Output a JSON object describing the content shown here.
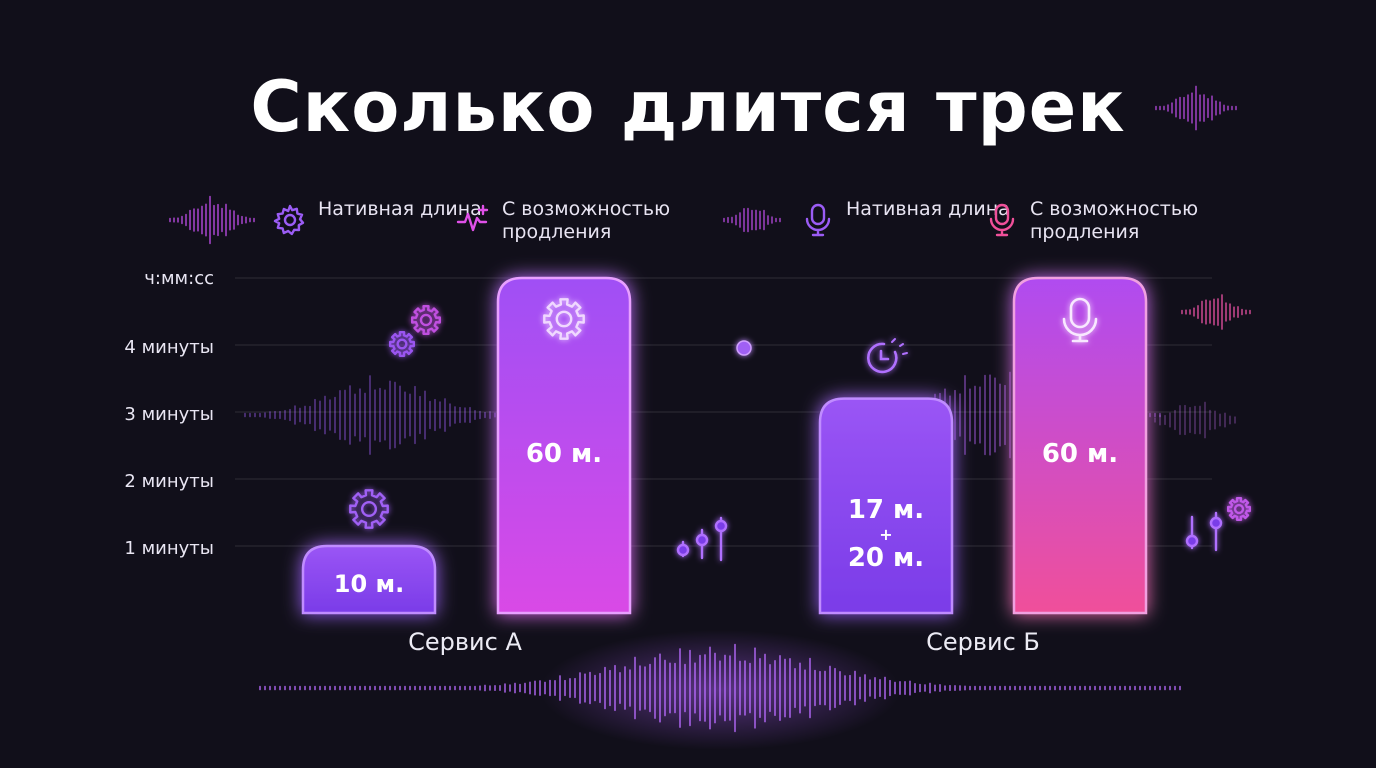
{
  "title": "Сколько длится трек",
  "legend": [
    {
      "icon": "gear-icon",
      "label": "Нативная длина",
      "color": "#9b5cf5"
    },
    {
      "icon": "pulse-plus-icon",
      "label": "С возможностью продления",
      "color": "#e050e8"
    },
    {
      "icon": "microphone-icon",
      "label": "Нативная длина",
      "color": "#9b5cf5"
    },
    {
      "icon": "microphone-icon",
      "label": "С возможностью продления",
      "color": "#f0509a"
    }
  ],
  "chart_data": {
    "type": "bar",
    "y_unit_label": "ч:мм:сс",
    "y_ticks": [
      "1 минуты",
      "2 минуты",
      "3 минуты",
      "4 минуты"
    ],
    "categories": [
      "Сервис А",
      "Сервис Б"
    ],
    "series": [
      {
        "name": "Нативная длина",
        "values_min": [
          10,
          37
        ],
        "labels": [
          "10 м.",
          "17 м. + 20 м."
        ],
        "color": "#8b45f0",
        "icons": [
          "gear-icon",
          "timer-icon"
        ]
      },
      {
        "name": "С возможностью продления",
        "values_min": [
          60,
          60
        ],
        "labels": [
          "60 м.",
          "60 м."
        ],
        "color": "#d040ea",
        "icons": [
          "gear-icon",
          "microphone-icon"
        ]
      }
    ],
    "bar_visual_levels": {
      "native": [
        1,
        3.2
      ],
      "extended": [
        5,
        5
      ]
    },
    "grid": true,
    "legend_position": "top"
  }
}
